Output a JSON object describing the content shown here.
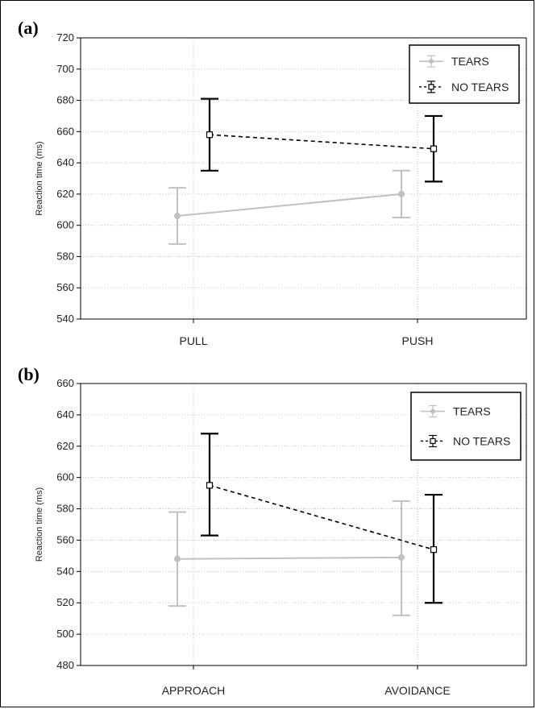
{
  "chart_data": [
    {
      "type": "line",
      "panel_label": "(a)",
      "ylabel": "Reaction time (ms)",
      "ylim": [
        540,
        720
      ],
      "yticks": [
        540,
        560,
        580,
        600,
        620,
        640,
        660,
        680,
        700,
        720
      ],
      "categories": [
        "PULL",
        "PUSH"
      ],
      "grid": true,
      "legend": "top-right",
      "series": [
        {
          "name": "TEARS",
          "values": [
            606,
            620
          ],
          "err_low": [
            588,
            605
          ],
          "err_high": [
            624,
            635
          ],
          "color": "#c0c0c0",
          "style": "solid",
          "marker": "circle"
        },
        {
          "name": "NO TEARS",
          "values": [
            658,
            649
          ],
          "err_low": [
            635,
            628
          ],
          "err_high": [
            681,
            670
          ],
          "color": "#000000",
          "style": "dashed",
          "marker": "square"
        }
      ]
    },
    {
      "type": "line",
      "panel_label": "(b)",
      "ylabel": "Reaction time (ms)",
      "ylim": [
        480,
        660
      ],
      "yticks": [
        480,
        500,
        520,
        540,
        560,
        580,
        600,
        620,
        640,
        660
      ],
      "categories": [
        "APPROACH",
        "AVOIDANCE"
      ],
      "grid": true,
      "legend": "top-right",
      "series": [
        {
          "name": "TEARS",
          "values": [
            548,
            549
          ],
          "err_low": [
            518,
            512
          ],
          "err_high": [
            578,
            585
          ],
          "color": "#c0c0c0",
          "style": "solid",
          "marker": "circle"
        },
        {
          "name": "NO TEARS",
          "values": [
            595,
            554
          ],
          "err_low": [
            563,
            520
          ],
          "err_high": [
            628,
            589
          ],
          "color": "#000000",
          "style": "dashed",
          "marker": "square"
        }
      ]
    }
  ]
}
